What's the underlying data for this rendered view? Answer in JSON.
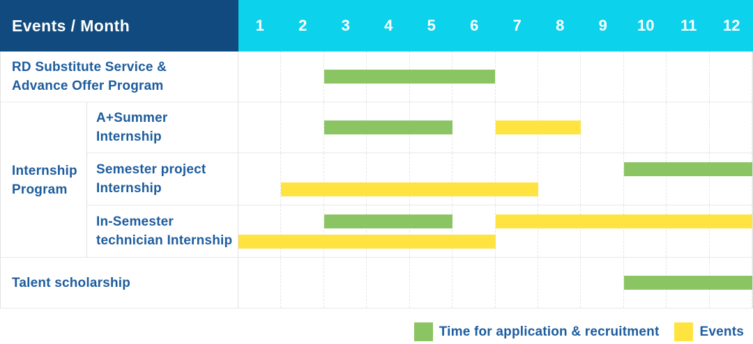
{
  "header": {
    "label": "Events / Month",
    "months": [
      "1",
      "2",
      "3",
      "4",
      "5",
      "6",
      "7",
      "8",
      "9",
      "10",
      "11",
      "12"
    ]
  },
  "group": {
    "line1": "Internship",
    "line2": "Program"
  },
  "rows": [
    {
      "line1": "RD Substitute Service &",
      "line2": "Advance Offer Program",
      "bars": [
        {
          "type": "application",
          "start": 3,
          "end": 6,
          "line": "mid"
        }
      ]
    },
    {
      "line1": "A+Summer",
      "line2": "Internship",
      "bars": [
        {
          "type": "application",
          "start": 3,
          "end": 5,
          "line": "mid"
        },
        {
          "type": "events",
          "start": 7,
          "end": 8,
          "line": "mid"
        }
      ]
    },
    {
      "line1": "Semester project",
      "line2": "Internship",
      "bars": [
        {
          "type": "application",
          "start": 10,
          "end": 12,
          "line": "top"
        },
        {
          "type": "events",
          "start": 2,
          "end": 7,
          "line": "bottom"
        }
      ]
    },
    {
      "line1": "In-Semester",
      "line2": "technician Internship",
      "bars": [
        {
          "type": "application",
          "start": 3,
          "end": 5,
          "line": "top"
        },
        {
          "type": "events",
          "start": 7,
          "end": 12,
          "line": "top"
        },
        {
          "type": "events",
          "start": 1,
          "end": 6,
          "line": "bottom"
        }
      ]
    },
    {
      "line1": "Talent scholarship",
      "bars": [
        {
          "type": "application",
          "start": 10,
          "end": 12,
          "line": "mid"
        }
      ]
    }
  ],
  "legend": {
    "application": {
      "label": "Time for application & recruitment",
      "color": "#8bc462"
    },
    "events": {
      "label": "Events",
      "color": "#ffe340"
    }
  },
  "colors": {
    "header_navy": "#104a7e",
    "header_cyan": "#0cd2ec",
    "label_text_blue": "#1d5c9e",
    "bar_green": "#8bc462",
    "bar_yellow": "#ffe340",
    "grid_line": "#e9e9e9"
  },
  "chart_data": {
    "type": "bar",
    "subtype": "gantt-schedule",
    "title": "Events / Month",
    "xlabel": "Month",
    "x_ticks": [
      1,
      2,
      3,
      4,
      5,
      6,
      7,
      8,
      9,
      10,
      11,
      12
    ],
    "x_range": [
      1,
      12
    ],
    "grid": true,
    "legend_position": "bottom-right",
    "legend": [
      "Time for application & recruitment",
      "Events"
    ],
    "rows": [
      {
        "category": "RD Substitute Service & Advance Offer Program",
        "group": null,
        "spans": [
          {
            "series": "Time for application & recruitment",
            "start_month": 3,
            "end_month": 6
          }
        ]
      },
      {
        "category": "A+Summer Internship",
        "group": "Internship Program",
        "spans": [
          {
            "series": "Time for application & recruitment",
            "start_month": 3,
            "end_month": 5
          },
          {
            "series": "Events",
            "start_month": 7,
            "end_month": 8
          }
        ]
      },
      {
        "category": "Semester project Internship",
        "group": "Internship Program",
        "spans": [
          {
            "series": "Time for application & recruitment",
            "start_month": 10,
            "end_month": 12
          },
          {
            "series": "Events",
            "start_month": 2,
            "end_month": 7
          }
        ]
      },
      {
        "category": "In-Semester technician Internship",
        "group": "Internship Program",
        "spans": [
          {
            "series": "Time for application & recruitment",
            "start_month": 3,
            "end_month": 5
          },
          {
            "series": "Events",
            "start_month": 7,
            "end_month": 12
          },
          {
            "series": "Events",
            "start_month": 1,
            "end_month": 6
          }
        ]
      },
      {
        "category": "Talent scholarship",
        "group": null,
        "spans": [
          {
            "series": "Time for application & recruitment",
            "start_month": 10,
            "end_month": 12
          }
        ]
      }
    ]
  }
}
